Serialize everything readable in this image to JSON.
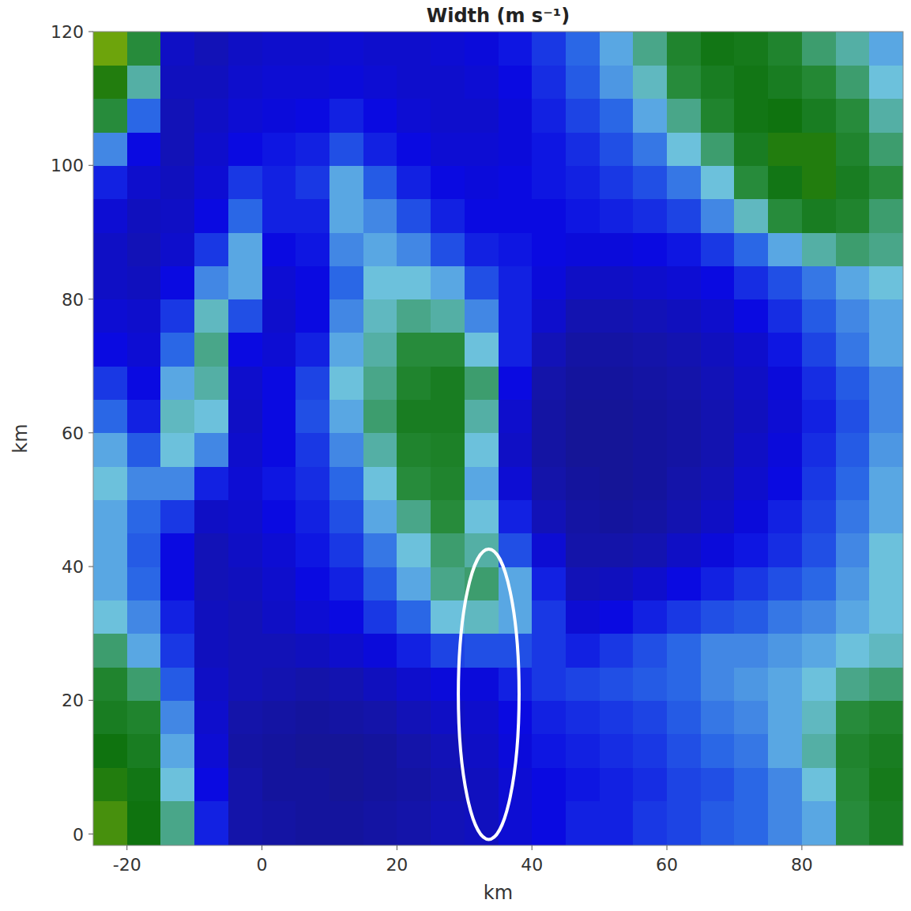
{
  "chart_data": {
    "type": "heatmap",
    "title": "Width (m s⁻¹)",
    "x_label": "km",
    "y_label": "km",
    "xlim": [
      -25,
      95
    ],
    "ylim": [
      -1.7,
      120
    ],
    "xticks": [
      -20,
      0,
      20,
      40,
      60,
      80
    ],
    "yticks": [
      0,
      20,
      40,
      60,
      80,
      100,
      120
    ],
    "x_edges": [
      -25,
      -20,
      -15,
      -10,
      -5,
      0,
      5,
      10,
      15,
      20,
      25,
      30,
      35,
      40,
      45,
      50,
      55,
      60,
      65,
      70,
      75,
      80,
      85,
      90,
      95
    ],
    "y_edges": [
      -1.7,
      5,
      10,
      15,
      20,
      25,
      30,
      35,
      40,
      45,
      50,
      55,
      60,
      65,
      70,
      75,
      80,
      85,
      90,
      95,
      100,
      105,
      110,
      115,
      120
    ],
    "color_range": [
      0,
      6
    ],
    "cells": [
      [
        4.8,
        4.5,
        3.5,
        2.0,
        1.0,
        0.9,
        0.8,
        0.8,
        0.9,
        1.0,
        1.2,
        1.3,
        1.6,
        1.8,
        2.0,
        2.0,
        2.2,
        2.3,
        2.5,
        2.6,
        2.8,
        3.0,
        3.8,
        4.2
      ],
      [
        4.6,
        4.4,
        3.2,
        1.8,
        1.0,
        0.8,
        0.8,
        0.7,
        0.8,
        0.9,
        1.1,
        1.3,
        1.6,
        1.8,
        1.9,
        2.0,
        2.1,
        2.3,
        2.4,
        2.6,
        2.8,
        3.2,
        3.9,
        4.3
      ],
      [
        4.5,
        4.2,
        3.0,
        1.6,
        0.9,
        0.8,
        0.7,
        0.7,
        0.8,
        1.0,
        1.2,
        1.4,
        1.7,
        1.9,
        2.0,
        2.1,
        2.2,
        2.4,
        2.6,
        2.7,
        3.0,
        3.4,
        4.0,
        4.2
      ],
      [
        4.2,
        4.0,
        2.8,
        1.5,
        1.0,
        0.9,
        0.8,
        0.9,
        1.0,
        1.2,
        1.4,
        1.5,
        1.8,
        2.0,
        2.1,
        2.2,
        2.3,
        2.5,
        2.7,
        2.8,
        3.0,
        3.3,
        3.8,
        4.0
      ],
      [
        4.0,
        3.6,
        2.5,
        1.4,
        1.2,
        1.1,
        1.0,
        1.1,
        1.3,
        1.5,
        1.7,
        1.7,
        2.0,
        2.2,
        2.3,
        2.4,
        2.5,
        2.6,
        2.8,
        2.9,
        3.0,
        3.2,
        3.5,
        3.6
      ],
      [
        3.6,
        3.0,
        2.2,
        1.3,
        1.2,
        1.2,
        1.3,
        1.5,
        1.7,
        2.0,
        2.3,
        2.4,
        2.4,
        2.2,
        2.0,
        2.2,
        2.4,
        2.6,
        2.8,
        2.8,
        2.9,
        3.0,
        3.2,
        3.3
      ],
      [
        3.2,
        2.8,
        2.0,
        1.3,
        1.2,
        1.4,
        1.6,
        1.8,
        2.2,
        2.6,
        3.2,
        3.3,
        3.0,
        2.2,
        1.6,
        1.8,
        2.0,
        2.2,
        2.4,
        2.5,
        2.7,
        2.8,
        3.0,
        3.2
      ],
      [
        3.0,
        2.6,
        1.8,
        1.2,
        1.3,
        1.5,
        1.8,
        2.0,
        2.5,
        3.0,
        3.5,
        3.6,
        3.0,
        2.0,
        1.2,
        1.3,
        1.5,
        1.8,
        2.0,
        2.2,
        2.4,
        2.6,
        2.9,
        3.2
      ],
      [
        3.0,
        2.5,
        1.8,
        1.2,
        1.4,
        1.6,
        1.9,
        2.2,
        2.7,
        3.2,
        3.6,
        3.4,
        2.4,
        1.6,
        1.0,
        1.0,
        1.1,
        1.4,
        1.7,
        1.9,
        2.1,
        2.4,
        2.8,
        3.2
      ],
      [
        3.0,
        2.6,
        2.2,
        1.4,
        1.5,
        1.8,
        2.0,
        2.4,
        3.0,
        3.5,
        3.8,
        3.2,
        2.0,
        1.2,
        0.9,
        0.8,
        0.9,
        1.1,
        1.4,
        1.7,
        2.0,
        2.3,
        2.7,
        3.0
      ],
      [
        3.2,
        2.8,
        2.8,
        2.0,
        1.6,
        1.9,
        2.1,
        2.6,
        3.2,
        3.8,
        4.0,
        3.0,
        1.6,
        1.0,
        0.8,
        0.7,
        0.8,
        1.0,
        1.2,
        1.5,
        1.8,
        2.2,
        2.6,
        3.0
      ],
      [
        3.0,
        2.5,
        3.2,
        2.8,
        1.5,
        1.8,
        2.2,
        2.8,
        3.4,
        4.0,
        4.1,
        3.2,
        1.4,
        0.9,
        0.7,
        0.7,
        0.8,
        0.9,
        1.1,
        1.4,
        1.7,
        2.1,
        2.5,
        2.9
      ],
      [
        2.6,
        2.0,
        3.3,
        3.2,
        1.4,
        1.8,
        2.4,
        3.0,
        3.6,
        4.2,
        4.2,
        3.4,
        1.5,
        0.9,
        0.7,
        0.7,
        0.8,
        0.9,
        1.1,
        1.3,
        1.6,
        2.0,
        2.4,
        2.8
      ],
      [
        2.2,
        1.8,
        3.0,
        3.4,
        1.5,
        1.8,
        2.3,
        3.2,
        3.5,
        4.0,
        4.2,
        3.6,
        1.8,
        1.0,
        0.8,
        0.8,
        0.9,
        1.0,
        1.2,
        1.4,
        1.7,
        2.1,
        2.5,
        2.8
      ],
      [
        1.8,
        1.6,
        2.6,
        3.5,
        1.8,
        1.6,
        2.0,
        3.0,
        3.4,
        3.8,
        3.8,
        3.2,
        2.0,
        1.2,
        0.9,
        0.9,
        1.0,
        1.1,
        1.3,
        1.5,
        1.9,
        2.3,
        2.7,
        3.0
      ],
      [
        1.6,
        1.5,
        2.2,
        3.3,
        2.4,
        1.5,
        1.8,
        2.8,
        3.3,
        3.5,
        3.4,
        2.8,
        2.0,
        1.5,
        1.1,
        1.1,
        1.2,
        1.3,
        1.5,
        1.8,
        2.1,
        2.5,
        2.8,
        3.0
      ],
      [
        1.4,
        1.3,
        1.8,
        2.8,
        3.0,
        1.6,
        1.8,
        2.6,
        3.2,
        3.2,
        3.0,
        2.4,
        2.0,
        1.7,
        1.4,
        1.4,
        1.5,
        1.6,
        1.8,
        2.1,
        2.4,
        2.7,
        3.0,
        3.2
      ],
      [
        1.4,
        1.2,
        1.5,
        2.2,
        3.0,
        1.8,
        1.9,
        2.8,
        3.0,
        2.8,
        2.4,
        2.0,
        1.9,
        1.8,
        1.7,
        1.7,
        1.8,
        1.9,
        2.2,
        2.6,
        3.0,
        3.4,
        3.6,
        3.5
      ],
      [
        1.6,
        1.3,
        1.4,
        1.8,
        2.6,
        2.0,
        2.0,
        3.0,
        2.8,
        2.4,
        2.0,
        1.8,
        1.8,
        1.8,
        1.9,
        2.0,
        2.1,
        2.3,
        2.8,
        3.3,
        3.8,
        4.2,
        4.0,
        3.6
      ],
      [
        2.0,
        1.5,
        1.3,
        1.6,
        2.2,
        2.0,
        2.2,
        3.0,
        2.5,
        2.0,
        1.8,
        1.7,
        1.8,
        1.9,
        2.0,
        2.2,
        2.4,
        2.7,
        3.2,
        3.8,
        4.4,
        4.6,
        4.2,
        3.8
      ],
      [
        2.8,
        1.8,
        1.2,
        1.5,
        1.8,
        1.9,
        2.0,
        2.4,
        2.0,
        1.8,
        1.6,
        1.6,
        1.7,
        1.9,
        2.1,
        2.4,
        2.7,
        3.2,
        3.6,
        4.2,
        4.6,
        4.6,
        4.0,
        3.6
      ],
      [
        3.8,
        2.6,
        1.2,
        1.4,
        1.6,
        1.7,
        1.8,
        2.0,
        1.8,
        1.6,
        1.5,
        1.5,
        1.7,
        2.0,
        2.3,
        2.6,
        3.0,
        3.5,
        4.0,
        4.4,
        4.5,
        4.2,
        3.8,
        3.4
      ],
      [
        4.6,
        3.4,
        1.3,
        1.3,
        1.5,
        1.6,
        1.6,
        1.7,
        1.6,
        1.5,
        1.5,
        1.6,
        1.8,
        2.1,
        2.5,
        2.9,
        3.3,
        3.8,
        4.2,
        4.4,
        4.2,
        3.9,
        3.6,
        3.2
      ],
      [
        5.0,
        3.8,
        1.4,
        1.2,
        1.4,
        1.5,
        1.5,
        1.6,
        1.5,
        1.5,
        1.6,
        1.7,
        1.9,
        2.2,
        2.6,
        3.0,
        3.5,
        4.0,
        4.4,
        4.3,
        4.0,
        3.6,
        3.4,
        3.0
      ]
    ],
    "ellipse": {
      "center": [
        33.6,
        20.9
      ],
      "width": 9,
      "height": 43.4,
      "color": "#ffffff"
    }
  }
}
